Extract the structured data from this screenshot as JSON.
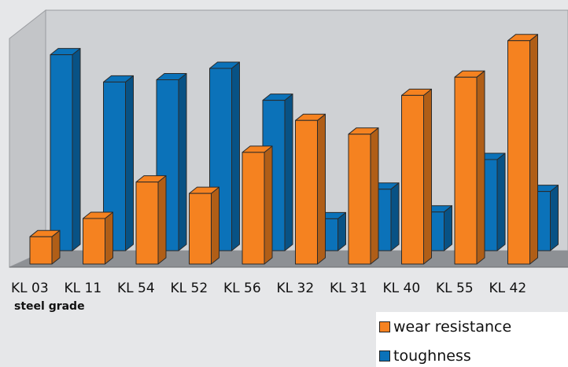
{
  "chart_data": {
    "type": "bar",
    "categories": [
      "KL 03",
      "KL 11",
      "KL 54",
      "KL 52",
      "KL 56",
      "KL 32",
      "KL 31",
      "KL 40",
      "KL 55",
      "KL 42"
    ],
    "series": [
      {
        "name": "wear resistance",
        "color": "#f58220",
        "values": [
          12,
          20,
          36,
          31,
          49,
          63,
          57,
          74,
          82,
          98
        ]
      },
      {
        "name": "toughness",
        "color": "#0b72b9",
        "values": [
          86,
          74,
          75,
          80,
          66,
          14,
          27,
          17,
          40,
          26
        ]
      }
    ],
    "xlabel": "steel grade",
    "ylabel": "",
    "ylim": [
      0,
      100
    ],
    "legend_position": "bottom-right",
    "grid": false
  }
}
